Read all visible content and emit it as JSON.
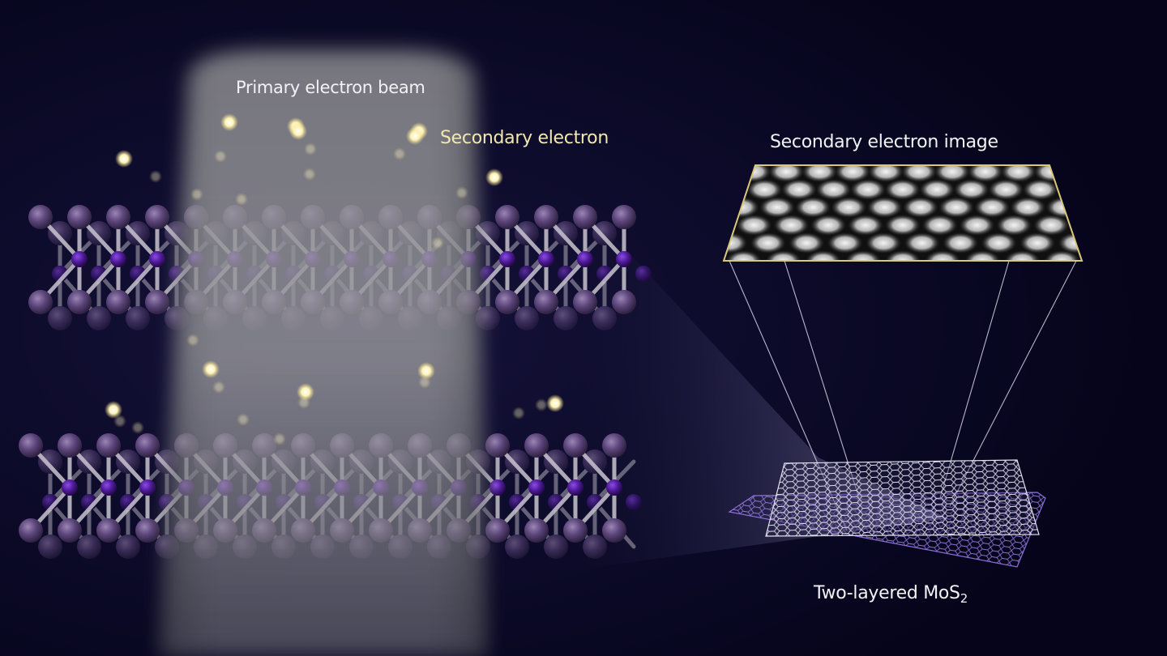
{
  "labels": {
    "primary_beam": "Primary electron beam",
    "secondary_electron": "Secondary electron",
    "secondary_image": "Secondary electron image",
    "mos2_prefix": "Two-layered MoS",
    "mos2_subscript": "2"
  },
  "colors": {
    "background": "#08061c",
    "label_white": "#f2f2f2",
    "label_gold": "#f3e7b0",
    "molybdenum_atom": "#4a1a8c",
    "sulfur_atom": "#5a4378",
    "bond": "#c8c4cf",
    "electron": "#fff3b0",
    "image_frame": "#d9c77a",
    "lattice_top": "#e6e3ee",
    "lattice_bottom": "#8e6fd8"
  }
}
